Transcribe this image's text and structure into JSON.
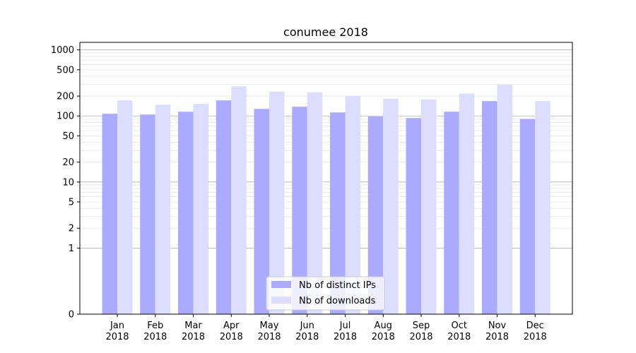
{
  "chart_data": {
    "type": "bar",
    "title": "conumee 2018",
    "xlabel": "",
    "ylabel": "",
    "y_scale": "symlog",
    "ylim": [
      0,
      1300
    ],
    "y_ticks": [
      0,
      1,
      2,
      5,
      10,
      20,
      50,
      100,
      200,
      500,
      1000
    ],
    "categories": [
      "Jan\n2018",
      "Feb\n2018",
      "Mar\n2018",
      "Apr\n2018",
      "May\n2018",
      "Jun\n2018",
      "Jul\n2018",
      "Aug\n2018",
      "Sep\n2018",
      "Oct\n2018",
      "Nov\n2018",
      "Dec\n2018"
    ],
    "series": [
      {
        "name": "Nb of distinct IPs",
        "color": "#aaaaff",
        "values": [
          108,
          105,
          116,
          172,
          128,
          138,
          113,
          98,
          93,
          116,
          168,
          90
        ]
      },
      {
        "name": "Nb of downloads",
        "color": "#ddddff",
        "values": [
          172,
          148,
          152,
          280,
          233,
          228,
          200,
          182,
          178,
          218,
          298,
          168
        ]
      }
    ],
    "grid": true,
    "legend_position": "bottom-center"
  }
}
